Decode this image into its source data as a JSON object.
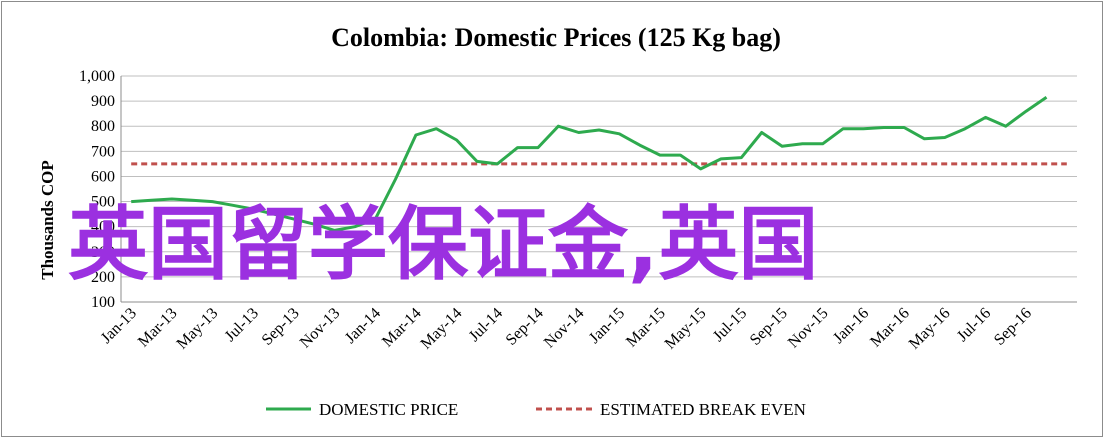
{
  "chart_data": {
    "type": "line",
    "title": "Colombia: Domestic Prices (125 Kg bag)",
    "ylabel": "Thousands COP",
    "xlabel": "",
    "ylim": [
      100,
      1000
    ],
    "yticks": [
      "100",
      "200",
      "300",
      "400",
      "500",
      "600",
      "700",
      "800",
      "900",
      "1,000"
    ],
    "ytick_values": [
      100,
      200,
      300,
      400,
      500,
      600,
      700,
      800,
      900,
      1000
    ],
    "x": [
      "Jan-13",
      "Feb-13",
      "Mar-13",
      "Apr-13",
      "May-13",
      "Jun-13",
      "Jul-13",
      "Aug-13",
      "Sep-13",
      "Oct-13",
      "Nov-13",
      "Dec-13",
      "Jan-14",
      "Feb-14",
      "Mar-14",
      "Apr-14",
      "May-14",
      "Jun-14",
      "Jul-14",
      "Aug-14",
      "Sep-14",
      "Oct-14",
      "Nov-14",
      "Dec-14",
      "Jan-15",
      "Feb-15",
      "Mar-15",
      "Apr-15",
      "May-15",
      "Jun-15",
      "Jul-15",
      "Aug-15",
      "Sep-15",
      "Oct-15",
      "Nov-15",
      "Dec-15",
      "Jan-16",
      "Feb-16",
      "Mar-16",
      "Apr-16",
      "May-16",
      "Jun-16",
      "Jul-16",
      "Aug-16",
      "Sep-16",
      "Oct-16",
      "Nov-16"
    ],
    "xtick_labels": [
      "Jan-13",
      "Mar-13",
      "May-13",
      "Jul-13",
      "Sep-13",
      "Nov-13",
      "Jan-14",
      "Mar-14",
      "May-14",
      "Jul-14",
      "Sep-14",
      "Nov-14",
      "Jan-15",
      "Mar-15",
      "May-15",
      "Jul-15",
      "Sep-15",
      "Nov-15",
      "Jan-16",
      "Mar-16",
      "May-16",
      "Jul-16",
      "Sep-16"
    ],
    "series": [
      {
        "name": "DOMESTIC PRICE",
        "color": "#2eaa4e",
        "style": "solid",
        "values": [
          500,
          505,
          510,
          505,
          500,
          485,
          470,
          450,
          430,
          410,
          385,
          400,
          430,
          590,
          765,
          790,
          745,
          660,
          650,
          715,
          715,
          800,
          775,
          785,
          770,
          725,
          685,
          685,
          630,
          670,
          675,
          775,
          720,
          730,
          730,
          790,
          790,
          795,
          795,
          750,
          755,
          790,
          835,
          800,
          860,
          915,
          null
        ]
      },
      {
        "name": "ESTIMATED BREAK EVEN",
        "color": "#c0504d",
        "style": "dashed",
        "values": [
          650,
          650,
          650,
          650,
          650,
          650,
          650,
          650,
          650,
          650,
          650,
          650,
          650,
          650,
          650,
          650,
          650,
          650,
          650,
          650,
          650,
          650,
          650,
          650,
          650,
          650,
          650,
          650,
          650,
          650,
          650,
          650,
          650,
          650,
          650,
          650,
          650,
          650,
          650,
          650,
          650,
          650,
          650,
          650,
          650,
          650,
          650
        ]
      }
    ],
    "grid": true,
    "legend_position": "bottom"
  },
  "overlay_text": "英国留学保证金,英国"
}
